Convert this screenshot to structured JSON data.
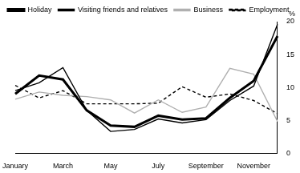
{
  "chart_data": {
    "type": "line",
    "categories": [
      "January",
      null,
      "March",
      null,
      "May",
      null,
      "July",
      null,
      "September",
      null,
      "November",
      null
    ],
    "series": [
      {
        "name": "Holiday",
        "color": "#000000",
        "line_style": "solid",
        "values": [
          9.0,
          11.8,
          11.2,
          6.5,
          4.2,
          4.0,
          5.7,
          5.1,
          5.3,
          8.4,
          11.0,
          17.8
        ]
      },
      {
        "name": "Visiting friends and relatives",
        "color": "#000000",
        "line_style": "solid",
        "values": [
          9.5,
          10.7,
          13.0,
          6.5,
          3.3,
          3.6,
          5.2,
          4.6,
          5.1,
          8.0,
          10.2,
          19.6
        ]
      },
      {
        "name": "Business",
        "color": "#b0b0b0",
        "line_style": "solid",
        "values": [
          8.2,
          9.3,
          8.8,
          8.6,
          8.1,
          6.1,
          8.1,
          6.2,
          7.0,
          12.9,
          12.0,
          4.8
        ]
      },
      {
        "name": "Employment",
        "color": "#000000",
        "line_style": "dashed",
        "values": [
          10.3,
          8.4,
          9.5,
          7.5,
          7.5,
          7.5,
          7.6,
          10.1,
          8.5,
          9.0,
          8.0,
          6.0
        ]
      }
    ],
    "ylabel": "%",
    "ylim": [
      0,
      20
    ],
    "yticks": [
      0,
      5,
      10,
      15,
      20
    ],
    "grid": false,
    "legend": "upper left"
  }
}
